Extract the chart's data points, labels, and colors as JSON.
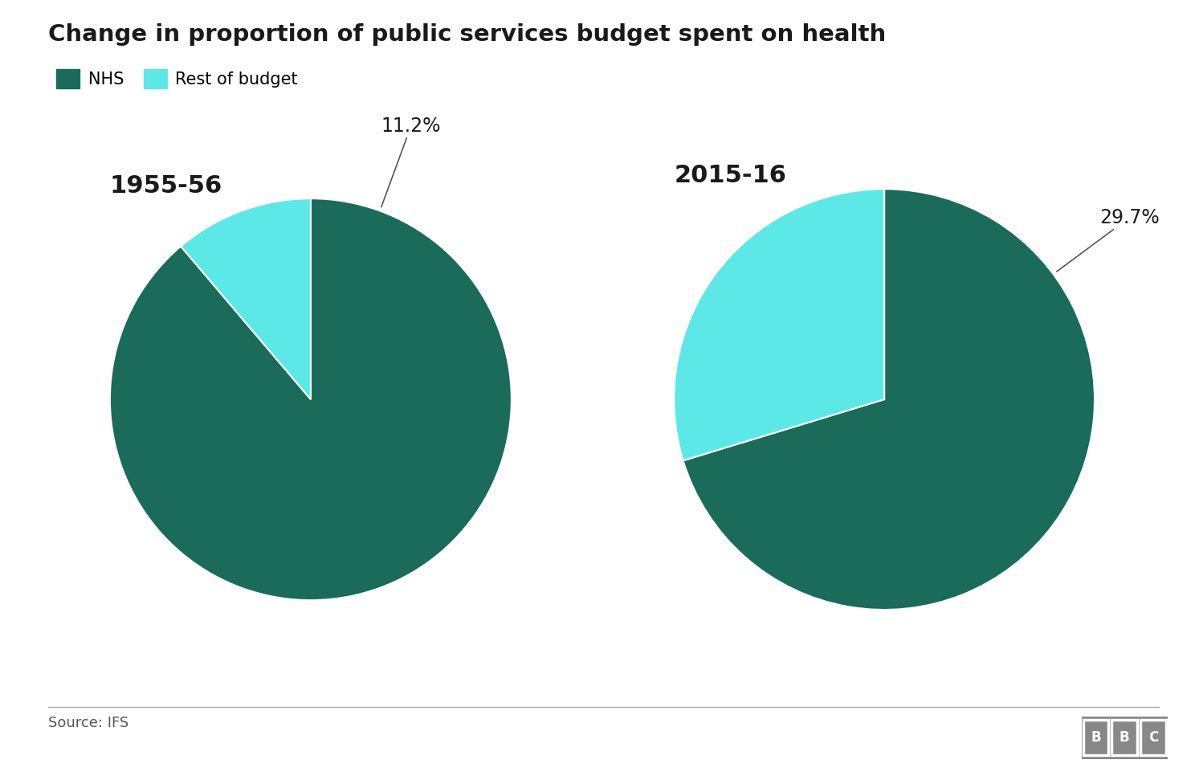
{
  "title": "Change in proportion of public services budget spent on health",
  "legend_labels": [
    "NHS",
    "Rest of budget"
  ],
  "nhs_color": "#1a6b5a",
  "rest_color": "#5de8e8",
  "chart1": {
    "label": "1955-56",
    "nhs_pct": 88.8,
    "rest_pct": 11.2,
    "annotation": "11.2%"
  },
  "chart2": {
    "label": "2015-16",
    "nhs_pct": 70.3,
    "rest_pct": 29.7,
    "annotation": "29.7%"
  },
  "source_text": "Source: IFS",
  "background_color": "#ffffff",
  "title_fontsize": 21,
  "chart_label_fontsize": 22,
  "legend_fontsize": 15,
  "annotation_fontsize": 17,
  "source_fontsize": 13
}
